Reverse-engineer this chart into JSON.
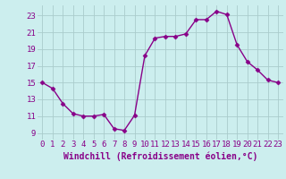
{
  "x": [
    0,
    1,
    2,
    3,
    4,
    5,
    6,
    7,
    8,
    9,
    10,
    11,
    12,
    13,
    14,
    15,
    16,
    17,
    18,
    19,
    20,
    21,
    22,
    23
  ],
  "y": [
    15,
    14.3,
    12.5,
    11.3,
    11,
    11,
    11.2,
    9.5,
    9.3,
    11.1,
    18.2,
    20.3,
    20.5,
    20.5,
    20.8,
    22.5,
    22.5,
    23.5,
    23.1,
    19.5,
    17.5,
    16.5,
    15.3,
    15
  ],
  "line_color": "#880088",
  "marker": "D",
  "marker_size": 2.5,
  "bg_color": "#cceeee",
  "grid_color": "#aacccc",
  "xlabel": "Windchill (Refroidissement éolien,°C)",
  "xlabel_fontsize": 7,
  "xlabel_color": "#880088",
  "xtick_labels": [
    "0",
    "1",
    "2",
    "3",
    "4",
    "5",
    "6",
    "7",
    "8",
    "9",
    "10",
    "11",
    "12",
    "13",
    "14",
    "15",
    "16",
    "17",
    "18",
    "19",
    "20",
    "21",
    "22",
    "23"
  ],
  "ytick_values": [
    9,
    11,
    13,
    15,
    17,
    19,
    21,
    23
  ],
  "ylim": [
    8.2,
    24.2
  ],
  "xlim": [
    -0.5,
    23.5
  ],
  "tick_color": "#880088",
  "tick_fontsize": 6.5,
  "line_width": 1.0
}
